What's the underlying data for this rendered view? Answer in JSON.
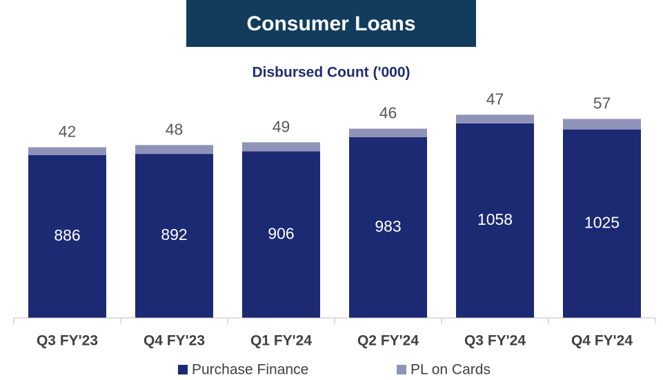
{
  "chart_data": {
    "type": "stacked_bar",
    "title": "Consumer Loans",
    "subtitle": "Disbursed Count ('000)",
    "categories": [
      "Q3 FY'23",
      "Q4 FY'23",
      "Q1 FY'24",
      "Q2 FY'24",
      "Q3 FY'24",
      "Q4 FY'24"
    ],
    "series": [
      {
        "name": "Purchase Finance",
        "color": "#1b2a73",
        "values": [
          886,
          892,
          906,
          983,
          1058,
          1025
        ]
      },
      {
        "name": "PL on Cards",
        "color": "#8f93b8",
        "values": [
          42,
          48,
          49,
          46,
          47,
          57
        ]
      }
    ],
    "ylim": [
      0,
      1200
    ]
  }
}
